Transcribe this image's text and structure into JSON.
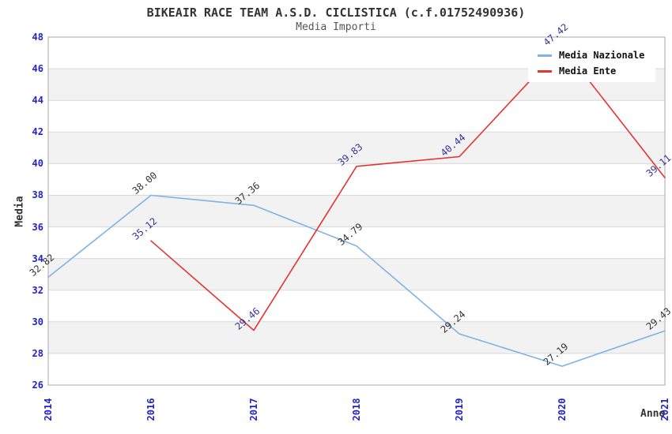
{
  "chart_data": {
    "type": "line",
    "title": "BIKEAIR RACE TEAM A.S.D. CICLISTICA (c.f.01752490936)",
    "subtitle": "Media Importi",
    "xlabel": "Anno",
    "ylabel": "Media",
    "categories": [
      "2014",
      "2016",
      "2017",
      "2018",
      "2019",
      "2020",
      "2021"
    ],
    "series": [
      {
        "name": "Media Nazionale",
        "color": "#7FB3E5",
        "label_color": "#333333",
        "values": [
          32.82,
          38.0,
          37.36,
          34.79,
          29.24,
          27.19,
          29.43
        ]
      },
      {
        "name": "Media Ente",
        "color": "#E73232",
        "label_color": "#333399",
        "values": [
          null,
          35.12,
          29.46,
          39.83,
          40.44,
          47.42,
          39.11
        ]
      }
    ],
    "ylim": [
      26,
      48
    ],
    "ytick_step": 2,
    "yticks": [
      26,
      28,
      30,
      32,
      34,
      36,
      38,
      40,
      42,
      44,
      46,
      48
    ],
    "grid": true,
    "legend_position": "top-right",
    "colors": {
      "background": "#ffffff",
      "band": "#f2f2f2",
      "gridline": "#d9d9d9",
      "plot_border": "#aaaaaa",
      "tick_label": "#2222cc",
      "title": "#333333",
      "subtitle": "#555555",
      "axis_title": "#333333",
      "legend_text": "#111111"
    }
  }
}
